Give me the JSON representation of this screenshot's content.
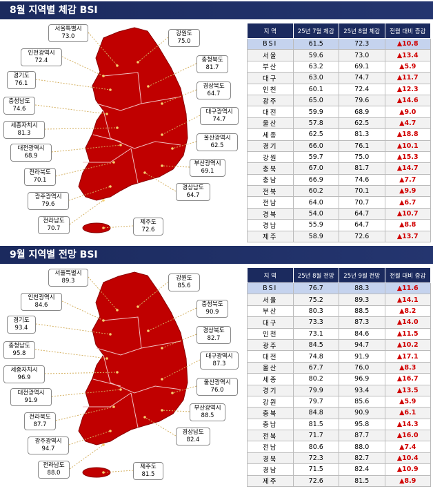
{
  "panels": [
    {
      "title": "8월 지역별 체감 BSI",
      "map_labels": [
        {
          "name": "서울특별시",
          "value": "73.0"
        },
        {
          "name": "인천광역시",
          "value": "72.4"
        },
        {
          "name": "경기도",
          "value": "76.1"
        },
        {
          "name": "충청남도",
          "value": "74.6"
        },
        {
          "name": "세종자치시",
          "value": "81.3"
        },
        {
          "name": "대전광역시",
          "value": "68.9"
        },
        {
          "name": "전라북도",
          "value": "70.1"
        },
        {
          "name": "광주광역시",
          "value": "79.6"
        },
        {
          "name": "전라남도",
          "value": "70.7"
        },
        {
          "name": "강원도",
          "value": "75.0"
        },
        {
          "name": "충청북도",
          "value": "81.7"
        },
        {
          "name": "경상북도",
          "value": "64.7"
        },
        {
          "name": "대구광역시",
          "value": "74.7"
        },
        {
          "name": "울산광역시",
          "value": "62.5"
        },
        {
          "name": "부산광역시",
          "value": "69.1"
        },
        {
          "name": "경상남도",
          "value": "64.7"
        },
        {
          "name": "제주도",
          "value": "72.6"
        }
      ],
      "table": {
        "header": [
          "지 역",
          "25년 7월 체감",
          "25년 8월 체감",
          "전월 대비 증감"
        ],
        "rows": [
          [
            "BSI",
            "61.5",
            "72.3",
            "▲10.8"
          ],
          [
            "서울",
            "59.6",
            "73.0",
            "▲13.4"
          ],
          [
            "부산",
            "63.2",
            "69.1",
            "▲5.9"
          ],
          [
            "대구",
            "63.0",
            "74.7",
            "▲11.7"
          ],
          [
            "인천",
            "60.1",
            "72.4",
            "▲12.3"
          ],
          [
            "광주",
            "65.0",
            "79.6",
            "▲14.6"
          ],
          [
            "대전",
            "59.9",
            "68.9",
            "▲9.0"
          ],
          [
            "울산",
            "57.8",
            "62.5",
            "▲4.7"
          ],
          [
            "세종",
            "62.5",
            "81.3",
            "▲18.8"
          ],
          [
            "경기",
            "66.0",
            "76.1",
            "▲10.1"
          ],
          [
            "강원",
            "59.7",
            "75.0",
            "▲15.3"
          ],
          [
            "충북",
            "67.0",
            "81.7",
            "▲14.7"
          ],
          [
            "충남",
            "66.9",
            "74.6",
            "▲7.7"
          ],
          [
            "전북",
            "60.2",
            "70.1",
            "▲9.9"
          ],
          [
            "전남",
            "64.0",
            "70.7",
            "▲6.7"
          ],
          [
            "경북",
            "54.0",
            "64.7",
            "▲10.7"
          ],
          [
            "경남",
            "55.9",
            "64.7",
            "▲8.8"
          ],
          [
            "제주",
            "58.9",
            "72.6",
            "▲13.7"
          ]
        ]
      }
    },
    {
      "title": "9월 지역별 전망 BSI",
      "map_labels": [
        {
          "name": "서울특별시",
          "value": "89.3"
        },
        {
          "name": "인천광역시",
          "value": "84.6"
        },
        {
          "name": "경기도",
          "value": "93.4"
        },
        {
          "name": "충청남도",
          "value": "95.8"
        },
        {
          "name": "세종자치시",
          "value": "96.9"
        },
        {
          "name": "대전광역시",
          "value": "91.9"
        },
        {
          "name": "전라북도",
          "value": "87.7"
        },
        {
          "name": "광주광역시",
          "value": "94.7"
        },
        {
          "name": "전라남도",
          "value": "88.0"
        },
        {
          "name": "강원도",
          "value": "85.6"
        },
        {
          "name": "충청북도",
          "value": "90.9"
        },
        {
          "name": "경상북도",
          "value": "82.7"
        },
        {
          "name": "대구광역시",
          "value": "87.3"
        },
        {
          "name": "울산광역시",
          "value": "76.0"
        },
        {
          "name": "부산광역시",
          "value": "88.5"
        },
        {
          "name": "경상남도",
          "value": "82.4"
        },
        {
          "name": "제주도",
          "value": "81.5"
        }
      ],
      "table": {
        "header": [
          "지 역",
          "25년 8월 전망",
          "25년 9월 전망",
          "전월 대비 증감"
        ],
        "rows": [
          [
            "BSI",
            "76.7",
            "88.3",
            "▲11.6"
          ],
          [
            "서울",
            "75.2",
            "89.3",
            "▲14.1"
          ],
          [
            "부산",
            "80.3",
            "88.5",
            "▲8.2"
          ],
          [
            "대구",
            "73.3",
            "87.3",
            "▲14.0"
          ],
          [
            "인천",
            "73.1",
            "84.6",
            "▲11.5"
          ],
          [
            "광주",
            "84.5",
            "94.7",
            "▲10.2"
          ],
          [
            "대전",
            "74.8",
            "91.9",
            "▲17.1"
          ],
          [
            "울산",
            "67.7",
            "76.0",
            "▲8.3"
          ],
          [
            "세종",
            "80.2",
            "96.9",
            "▲16.7"
          ],
          [
            "경기",
            "79.9",
            "93.4",
            "▲13.5"
          ],
          [
            "강원",
            "79.7",
            "85.6",
            "▲5.9"
          ],
          [
            "충북",
            "84.8",
            "90.9",
            "▲6.1"
          ],
          [
            "충남",
            "81.5",
            "95.8",
            "▲14.3"
          ],
          [
            "전북",
            "71.7",
            "87.7",
            "▲16.0"
          ],
          [
            "전남",
            "80.6",
            "88.0",
            "▲7.4"
          ],
          [
            "경북",
            "72.3",
            "82.7",
            "▲10.4"
          ],
          [
            "경남",
            "71.5",
            "82.4",
            "▲10.9"
          ],
          [
            "제주",
            "72.6",
            "81.5",
            "▲8.9"
          ]
        ]
      }
    }
  ]
}
